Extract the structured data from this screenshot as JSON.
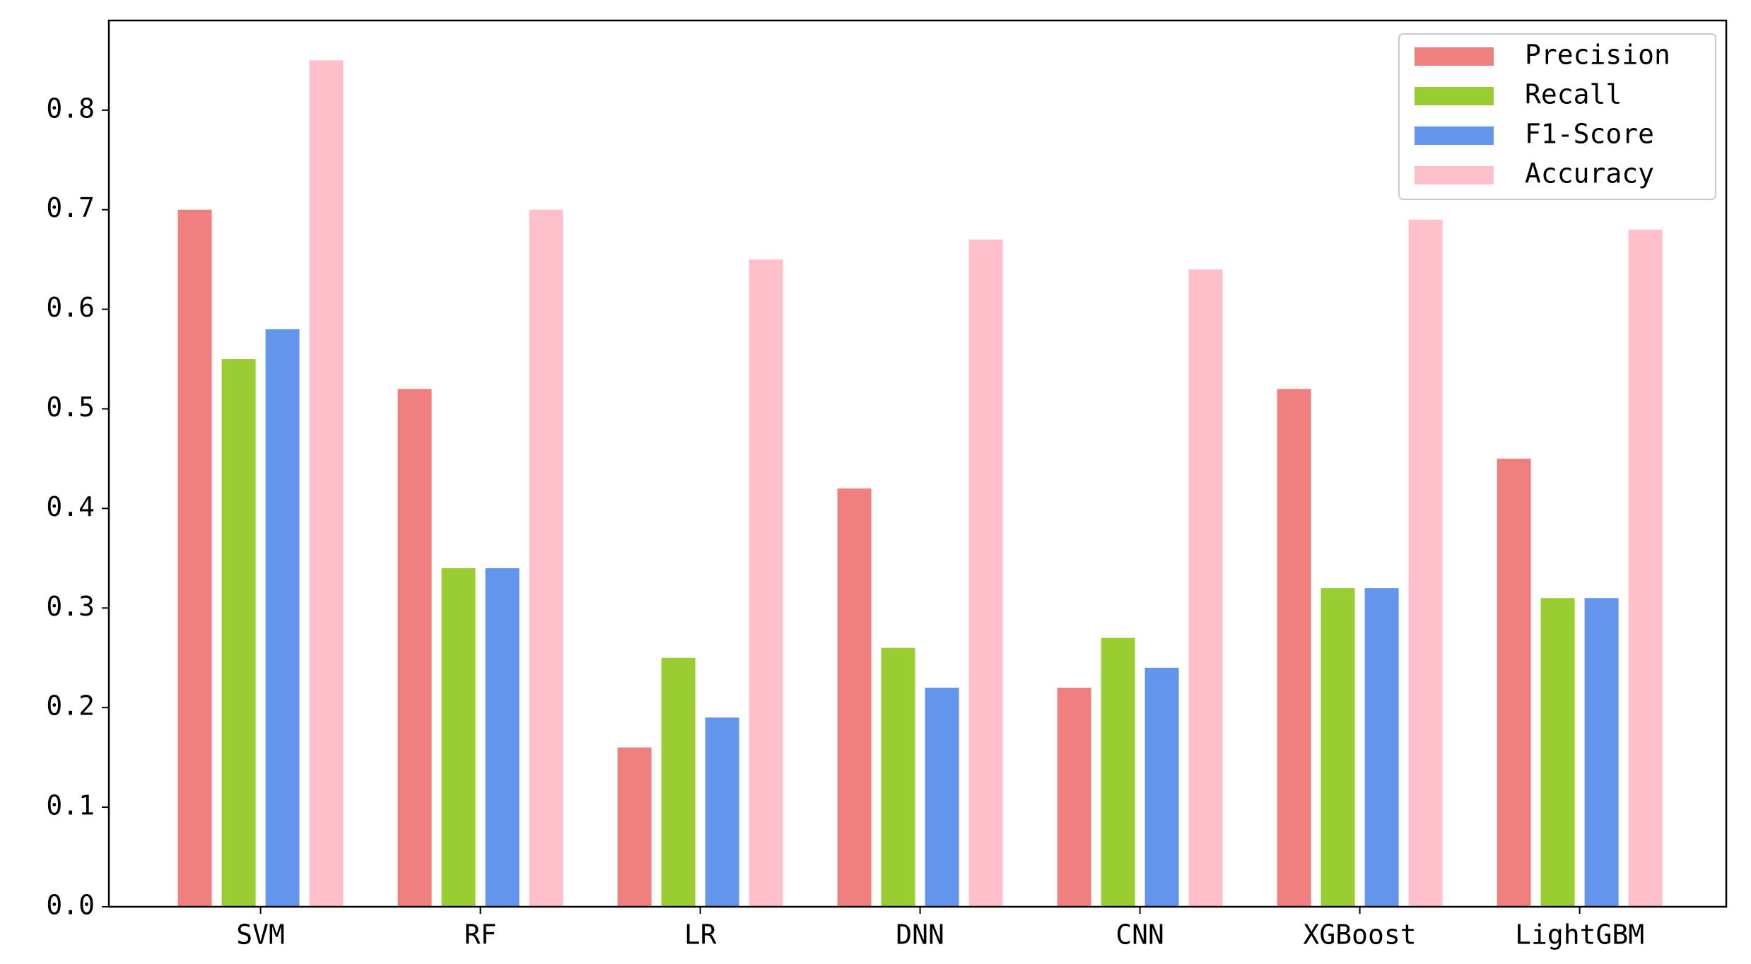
{
  "chart_data": {
    "type": "bar",
    "categories": [
      "SVM",
      "RF",
      "LR",
      "DNN",
      "CNN",
      "XGBoost",
      "LightGBM"
    ],
    "series": [
      {
        "name": "Precision",
        "color": "#f08080",
        "values": [
          0.7,
          0.52,
          0.16,
          0.42,
          0.22,
          0.52,
          0.45
        ]
      },
      {
        "name": "Recall",
        "color": "#9acd32",
        "values": [
          0.55,
          0.34,
          0.25,
          0.26,
          0.27,
          0.32,
          0.31
        ]
      },
      {
        "name": "F1-Score",
        "color": "#6495ed",
        "values": [
          0.58,
          0.34,
          0.19,
          0.22,
          0.24,
          0.32,
          0.31
        ]
      },
      {
        "name": "Accuracy",
        "color": "#ffc0cb",
        "values": [
          0.85,
          0.7,
          0.65,
          0.67,
          0.64,
          0.69,
          0.68
        ]
      }
    ],
    "ylim": [
      0,
      0.89
    ],
    "yticks": [
      {
        "value": 0,
        "label": "0.0"
      },
      0.1,
      0.2,
      0.3,
      0.4,
      0.5,
      0.6,
      0.7,
      0.8
    ],
    "legend": "upper right"
  }
}
